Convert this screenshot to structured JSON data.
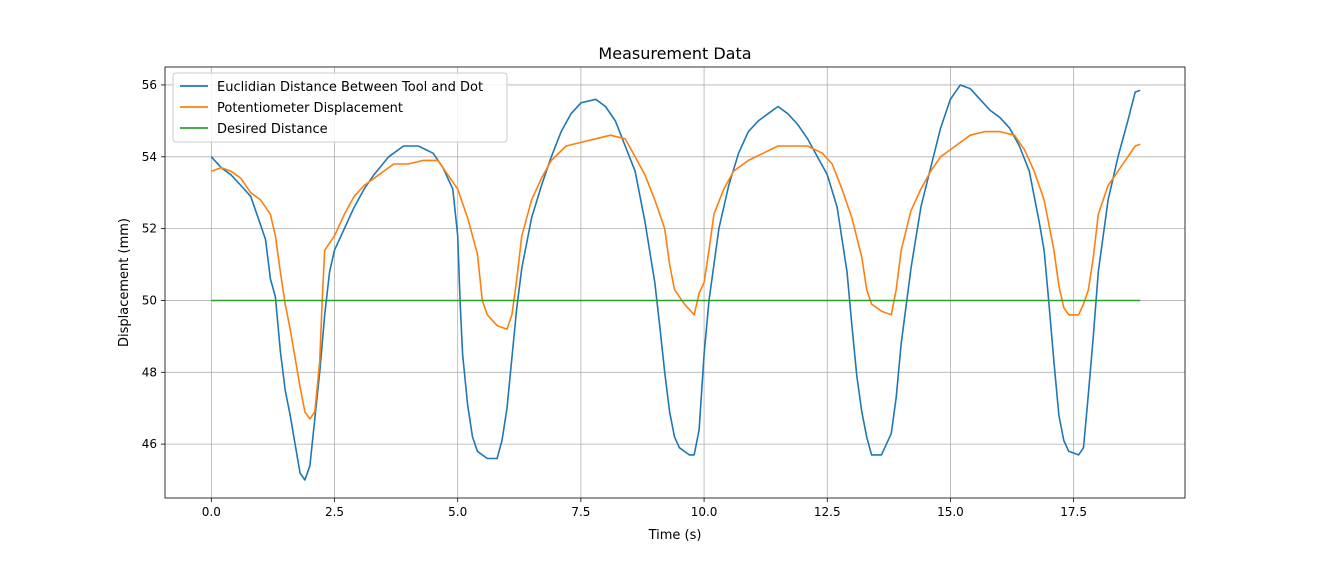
{
  "chart_data": {
    "type": "line",
    "title": "Measurement Data",
    "xlabel": "Time (s)",
    "ylabel": "Displacement (mm)",
    "xlim": [
      -0.94,
      19.76
    ],
    "ylim": [
      44.5,
      56.5
    ],
    "xticks": [
      0.0,
      2.5,
      5.0,
      7.5,
      10.0,
      12.5,
      15.0,
      17.5
    ],
    "xtick_labels": [
      "0.0",
      "2.5",
      "5.0",
      "7.5",
      "10.0",
      "12.5",
      "15.0",
      "17.5"
    ],
    "yticks": [
      46,
      48,
      50,
      52,
      54,
      56
    ],
    "ytick_labels": [
      "46",
      "48",
      "50",
      "52",
      "54",
      "56"
    ],
    "grid": true,
    "legend_position": "top-left",
    "series": [
      {
        "name": "Euclidian Distance Between Tool and Dot",
        "color": "#1f77b4",
        "points": [
          [
            0.0,
            54.0
          ],
          [
            0.2,
            53.7
          ],
          [
            0.4,
            53.5
          ],
          [
            0.6,
            53.2
          ],
          [
            0.8,
            52.9
          ],
          [
            1.0,
            52.1
          ],
          [
            1.1,
            51.7
          ],
          [
            1.2,
            50.6
          ],
          [
            1.3,
            50.1
          ],
          [
            1.4,
            48.6
          ],
          [
            1.5,
            47.5
          ],
          [
            1.6,
            46.8
          ],
          [
            1.7,
            46.0
          ],
          [
            1.8,
            45.2
          ],
          [
            1.9,
            45.0
          ],
          [
            2.0,
            45.4
          ],
          [
            2.1,
            46.7
          ],
          [
            2.2,
            48.0
          ],
          [
            2.3,
            49.6
          ],
          [
            2.4,
            50.8
          ],
          [
            2.5,
            51.4
          ],
          [
            2.7,
            52.0
          ],
          [
            2.9,
            52.6
          ],
          [
            3.1,
            53.1
          ],
          [
            3.3,
            53.5
          ],
          [
            3.6,
            54.0
          ],
          [
            3.9,
            54.3
          ],
          [
            4.2,
            54.3
          ],
          [
            4.5,
            54.1
          ],
          [
            4.7,
            53.7
          ],
          [
            4.9,
            53.1
          ],
          [
            5.0,
            51.8
          ],
          [
            5.05,
            49.9
          ],
          [
            5.1,
            48.5
          ],
          [
            5.2,
            47.1
          ],
          [
            5.3,
            46.2
          ],
          [
            5.4,
            45.8
          ],
          [
            5.6,
            45.6
          ],
          [
            5.8,
            45.6
          ],
          [
            5.9,
            46.1
          ],
          [
            6.0,
            47.0
          ],
          [
            6.1,
            48.4
          ],
          [
            6.2,
            49.8
          ],
          [
            6.3,
            50.9
          ],
          [
            6.5,
            52.3
          ],
          [
            6.7,
            53.2
          ],
          [
            6.9,
            54.0
          ],
          [
            7.1,
            54.7
          ],
          [
            7.3,
            55.2
          ],
          [
            7.5,
            55.5
          ],
          [
            7.8,
            55.6
          ],
          [
            8.0,
            55.4
          ],
          [
            8.2,
            55.0
          ],
          [
            8.4,
            54.3
          ],
          [
            8.6,
            53.6
          ],
          [
            8.8,
            52.2
          ],
          [
            9.0,
            50.5
          ],
          [
            9.1,
            49.3
          ],
          [
            9.2,
            48.0
          ],
          [
            9.3,
            46.9
          ],
          [
            9.4,
            46.2
          ],
          [
            9.5,
            45.9
          ],
          [
            9.7,
            45.7
          ],
          [
            9.8,
            45.7
          ],
          [
            9.9,
            46.4
          ],
          [
            10.0,
            48.5
          ],
          [
            10.1,
            50.0
          ],
          [
            10.3,
            52.0
          ],
          [
            10.5,
            53.2
          ],
          [
            10.7,
            54.1
          ],
          [
            10.9,
            54.7
          ],
          [
            11.1,
            55.0
          ],
          [
            11.3,
            55.2
          ],
          [
            11.5,
            55.4
          ],
          [
            11.7,
            55.2
          ],
          [
            11.9,
            54.9
          ],
          [
            12.1,
            54.5
          ],
          [
            12.3,
            54.0
          ],
          [
            12.5,
            53.5
          ],
          [
            12.7,
            52.6
          ],
          [
            12.9,
            50.8
          ],
          [
            13.0,
            49.3
          ],
          [
            13.1,
            47.9
          ],
          [
            13.2,
            46.9
          ],
          [
            13.3,
            46.2
          ],
          [
            13.4,
            45.7
          ],
          [
            13.6,
            45.7
          ],
          [
            13.8,
            46.3
          ],
          [
            13.9,
            47.3
          ],
          [
            14.0,
            48.8
          ],
          [
            14.2,
            50.9
          ],
          [
            14.4,
            52.6
          ],
          [
            14.6,
            53.7
          ],
          [
            14.8,
            54.8
          ],
          [
            15.0,
            55.6
          ],
          [
            15.2,
            56.0
          ],
          [
            15.4,
            55.9
          ],
          [
            15.6,
            55.6
          ],
          [
            15.8,
            55.3
          ],
          [
            16.0,
            55.1
          ],
          [
            16.2,
            54.8
          ],
          [
            16.4,
            54.3
          ],
          [
            16.6,
            53.6
          ],
          [
            16.8,
            52.2
          ],
          [
            16.9,
            51.4
          ],
          [
            17.0,
            49.9
          ],
          [
            17.1,
            48.3
          ],
          [
            17.2,
            46.8
          ],
          [
            17.3,
            46.1
          ],
          [
            17.4,
            45.8
          ],
          [
            17.6,
            45.7
          ],
          [
            17.7,
            45.9
          ],
          [
            17.8,
            47.4
          ],
          [
            17.9,
            49.0
          ],
          [
            18.0,
            50.8
          ],
          [
            18.2,
            52.8
          ],
          [
            18.4,
            54.0
          ],
          [
            18.6,
            55.0
          ],
          [
            18.75,
            55.8
          ],
          [
            18.85,
            55.85
          ]
        ]
      },
      {
        "name": "Potentiometer Displacement",
        "color": "#ff7f0e",
        "points": [
          [
            0.0,
            53.6
          ],
          [
            0.2,
            53.7
          ],
          [
            0.4,
            53.6
          ],
          [
            0.6,
            53.4
          ],
          [
            0.8,
            53.0
          ],
          [
            1.0,
            52.8
          ],
          [
            1.2,
            52.4
          ],
          [
            1.3,
            51.8
          ],
          [
            1.4,
            50.8
          ],
          [
            1.5,
            49.9
          ],
          [
            1.6,
            49.2
          ],
          [
            1.7,
            48.4
          ],
          [
            1.8,
            47.6
          ],
          [
            1.9,
            46.9
          ],
          [
            2.0,
            46.7
          ],
          [
            2.1,
            46.9
          ],
          [
            2.2,
            48.3
          ],
          [
            2.25,
            50.0
          ],
          [
            2.3,
            51.4
          ],
          [
            2.5,
            51.8
          ],
          [
            2.7,
            52.4
          ],
          [
            2.9,
            52.9
          ],
          [
            3.1,
            53.2
          ],
          [
            3.4,
            53.5
          ],
          [
            3.7,
            53.8
          ],
          [
            4.0,
            53.8
          ],
          [
            4.3,
            53.9
          ],
          [
            4.6,
            53.9
          ],
          [
            4.8,
            53.5
          ],
          [
            5.0,
            53.1
          ],
          [
            5.2,
            52.3
          ],
          [
            5.4,
            51.3
          ],
          [
            5.5,
            50.0
          ],
          [
            5.6,
            49.6
          ],
          [
            5.8,
            49.3
          ],
          [
            6.0,
            49.2
          ],
          [
            6.1,
            49.6
          ],
          [
            6.2,
            50.6
          ],
          [
            6.3,
            51.8
          ],
          [
            6.5,
            52.8
          ],
          [
            6.7,
            53.4
          ],
          [
            6.9,
            53.9
          ],
          [
            7.2,
            54.3
          ],
          [
            7.5,
            54.4
          ],
          [
            7.8,
            54.5
          ],
          [
            8.1,
            54.6
          ],
          [
            8.4,
            54.5
          ],
          [
            8.6,
            54.0
          ],
          [
            8.8,
            53.5
          ],
          [
            9.0,
            52.8
          ],
          [
            9.2,
            52.0
          ],
          [
            9.3,
            51.0
          ],
          [
            9.4,
            50.3
          ],
          [
            9.6,
            49.9
          ],
          [
            9.8,
            49.6
          ],
          [
            9.9,
            50.2
          ],
          [
            10.0,
            50.5
          ],
          [
            10.1,
            51.4
          ],
          [
            10.2,
            52.4
          ],
          [
            10.4,
            53.1
          ],
          [
            10.6,
            53.6
          ],
          [
            10.9,
            53.9
          ],
          [
            11.2,
            54.1
          ],
          [
            11.5,
            54.3
          ],
          [
            11.8,
            54.3
          ],
          [
            12.1,
            54.3
          ],
          [
            12.4,
            54.1
          ],
          [
            12.6,
            53.8
          ],
          [
            12.8,
            53.1
          ],
          [
            13.0,
            52.3
          ],
          [
            13.2,
            51.2
          ],
          [
            13.3,
            50.3
          ],
          [
            13.4,
            49.9
          ],
          [
            13.6,
            49.7
          ],
          [
            13.8,
            49.6
          ],
          [
            13.9,
            50.3
          ],
          [
            14.0,
            51.4
          ],
          [
            14.2,
            52.5
          ],
          [
            14.4,
            53.1
          ],
          [
            14.6,
            53.6
          ],
          [
            14.8,
            54.0
          ],
          [
            15.1,
            54.3
          ],
          [
            15.4,
            54.6
          ],
          [
            15.7,
            54.7
          ],
          [
            16.0,
            54.7
          ],
          [
            16.3,
            54.6
          ],
          [
            16.5,
            54.2
          ],
          [
            16.7,
            53.6
          ],
          [
            16.9,
            52.8
          ],
          [
            17.0,
            52.1
          ],
          [
            17.1,
            51.4
          ],
          [
            17.2,
            50.4
          ],
          [
            17.3,
            49.8
          ],
          [
            17.4,
            49.6
          ],
          [
            17.6,
            49.6
          ],
          [
            17.7,
            49.9
          ],
          [
            17.8,
            50.3
          ],
          [
            17.9,
            51.2
          ],
          [
            18.0,
            52.4
          ],
          [
            18.2,
            53.2
          ],
          [
            18.4,
            53.6
          ],
          [
            18.6,
            54.0
          ],
          [
            18.75,
            54.3
          ],
          [
            18.85,
            54.35
          ]
        ]
      },
      {
        "name": "Desired Distance",
        "color": "#2ca02c",
        "points": [
          [
            0.0,
            50.0
          ],
          [
            18.85,
            50.0
          ]
        ]
      }
    ]
  }
}
